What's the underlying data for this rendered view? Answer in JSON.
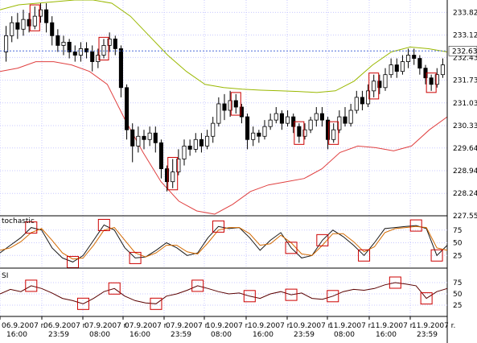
{
  "chart_data": [
    {
      "type": "candlestick",
      "panel": "price",
      "yticks": [
        233.82,
        233.12,
        232.43,
        231.73,
        231.03,
        230.33,
        229.64,
        228.94,
        228.24,
        227.55
      ],
      "ylim": [
        227.55,
        234.2
      ],
      "current_price": {
        "value": 232.63,
        "label": "232.63"
      },
      "bollinger_upper": [
        233.9,
        234.05,
        234.1,
        234.15,
        234.2,
        234.2,
        234.1,
        233.7,
        233.1,
        232.5,
        232.0,
        231.6,
        231.5,
        231.45,
        231.42,
        231.4,
        231.38,
        231.35,
        231.4,
        231.7,
        232.2,
        232.6,
        232.75,
        232.7,
        232.6
      ],
      "bollinger_lower": [
        232.0,
        232.1,
        232.3,
        232.3,
        232.2,
        232.0,
        231.6,
        230.5,
        229.5,
        228.6,
        228.0,
        227.7,
        227.6,
        227.9,
        228.3,
        228.5,
        228.6,
        228.7,
        229.0,
        229.5,
        229.7,
        229.65,
        229.55,
        229.7,
        230.2,
        230.6
      ],
      "candles": [
        [
          232.6,
          233.1,
          233.4,
          232.3
        ],
        [
          233.1,
          233.5,
          233.7,
          232.9
        ],
        [
          233.5,
          233.3,
          233.8,
          233.0
        ],
        [
          233.3,
          233.6,
          233.9,
          233.1
        ],
        [
          233.6,
          233.4,
          233.8,
          233.2
        ],
        [
          233.4,
          233.7,
          234.0,
          233.3
        ],
        [
          233.7,
          233.9,
          234.1,
          233.5
        ],
        [
          233.9,
          233.5,
          234.1,
          233.2
        ],
        [
          233.5,
          233.1,
          233.7,
          232.8
        ],
        [
          233.1,
          232.8,
          233.3,
          232.6
        ],
        [
          232.8,
          232.9,
          233.1,
          232.5
        ],
        [
          232.9,
          232.6,
          233.0,
          232.4
        ],
        [
          232.6,
          232.5,
          232.8,
          232.3
        ],
        [
          232.5,
          232.7,
          232.9,
          232.3
        ],
        [
          232.7,
          232.6,
          232.9,
          232.4
        ],
        [
          232.6,
          232.3,
          232.8,
          232.0
        ],
        [
          232.3,
          232.5,
          232.7,
          232.1
        ],
        [
          232.5,
          232.8,
          233.0,
          232.4
        ],
        [
          232.8,
          233.0,
          233.2,
          232.6
        ],
        [
          233.0,
          232.7,
          233.1,
          232.5
        ],
        [
          232.7,
          231.5,
          232.8,
          231.2
        ],
        [
          231.5,
          230.2,
          231.6,
          229.9
        ],
        [
          230.2,
          229.7,
          230.4,
          229.2
        ],
        [
          229.7,
          230.0,
          230.3,
          229.5
        ],
        [
          230.0,
          229.9,
          230.2,
          229.6
        ],
        [
          229.9,
          230.1,
          230.3,
          229.7
        ],
        [
          230.1,
          229.8,
          230.3,
          229.5
        ],
        [
          229.8,
          229.0,
          229.9,
          228.7
        ],
        [
          229.0,
          228.6,
          229.1,
          228.3
        ],
        [
          228.6,
          228.9,
          229.3,
          228.4
        ],
        [
          228.9,
          229.3,
          229.6,
          228.8
        ],
        [
          229.3,
          229.7,
          229.9,
          229.1
        ],
        [
          229.7,
          229.6,
          229.9,
          229.4
        ],
        [
          229.6,
          229.9,
          230.1,
          229.5
        ],
        [
          229.9,
          229.7,
          230.1,
          229.5
        ],
        [
          229.7,
          230.0,
          230.2,
          229.6
        ],
        [
          230.0,
          230.4,
          230.6,
          229.8
        ],
        [
          230.4,
          231.0,
          231.2,
          230.3
        ],
        [
          231.0,
          230.8,
          231.3,
          230.5
        ],
        [
          230.8,
          231.1,
          231.4,
          230.6
        ],
        [
          231.1,
          230.9,
          231.3,
          230.7
        ],
        [
          230.9,
          230.6,
          231.0,
          230.4
        ],
        [
          230.6,
          229.9,
          230.7,
          229.6
        ],
        [
          229.9,
          230.1,
          230.3,
          229.7
        ],
        [
          230.1,
          230.0,
          230.2,
          229.8
        ],
        [
          230.0,
          230.3,
          230.5,
          229.9
        ],
        [
          230.3,
          230.5,
          230.7,
          230.2
        ],
        [
          230.5,
          230.7,
          230.9,
          230.4
        ],
        [
          230.7,
          230.4,
          230.8,
          230.2
        ],
        [
          230.4,
          230.6,
          230.8,
          230.3
        ],
        [
          230.6,
          230.3,
          230.7,
          230.1
        ],
        [
          230.3,
          230.0,
          230.4,
          229.8
        ],
        [
          230.0,
          230.2,
          230.4,
          229.9
        ],
        [
          230.2,
          230.5,
          230.6,
          230.1
        ],
        [
          230.5,
          230.7,
          230.9,
          230.3
        ],
        [
          230.7,
          230.5,
          230.9,
          230.3
        ],
        [
          230.5,
          229.9,
          230.6,
          229.6
        ],
        [
          229.9,
          230.2,
          230.4,
          229.8
        ],
        [
          230.2,
          230.6,
          230.8,
          230.1
        ],
        [
          230.6,
          230.4,
          230.9,
          230.3
        ],
        [
          230.4,
          230.8,
          231.0,
          230.3
        ],
        [
          230.8,
          231.2,
          231.4,
          230.7
        ],
        [
          231.2,
          231.0,
          231.4,
          230.8
        ],
        [
          231.0,
          231.4,
          231.6,
          230.9
        ],
        [
          231.4,
          231.7,
          231.9,
          231.2
        ],
        [
          231.7,
          231.5,
          231.9,
          231.3
        ],
        [
          231.5,
          231.9,
          232.1,
          231.4
        ],
        [
          231.9,
          232.2,
          232.4,
          231.8
        ],
        [
          232.2,
          232.0,
          232.4,
          231.8
        ],
        [
          232.0,
          232.3,
          232.5,
          231.9
        ],
        [
          232.3,
          232.5,
          232.7,
          232.1
        ],
        [
          232.5,
          232.4,
          232.7,
          232.2
        ],
        [
          232.4,
          232.1,
          232.5,
          231.9
        ],
        [
          232.1,
          231.8,
          232.2,
          231.6
        ],
        [
          231.8,
          231.6,
          231.9,
          231.4
        ],
        [
          231.6,
          231.9,
          232.1,
          231.5
        ],
        [
          231.9,
          232.2,
          232.4,
          231.8
        ]
      ],
      "marker_candles": [
        5,
        17,
        29,
        40,
        51,
        57,
        64,
        74
      ]
    },
    {
      "type": "line",
      "panel": "stochastic",
      "title": "tochastic",
      "yticks": [
        75,
        50,
        25
      ],
      "ylim": [
        0,
        100
      ],
      "series": [
        {
          "color": "#1a1a1a",
          "values": [
            30,
            45,
            60,
            80,
            75,
            40,
            20,
            12,
            25,
            55,
            85,
            75,
            40,
            20,
            22,
            35,
            50,
            40,
            25,
            30,
            60,
            82,
            78,
            80,
            60,
            35,
            55,
            70,
            40,
            20,
            25,
            55,
            75,
            62,
            45,
            25,
            50,
            78,
            80,
            82,
            84,
            78,
            25,
            45
          ]
        },
        {
          "color": "#d46a00",
          "values": [
            35,
            40,
            52,
            70,
            78,
            55,
            30,
            18,
            20,
            45,
            75,
            80,
            55,
            30,
            22,
            30,
            45,
            45,
            32,
            28,
            50,
            75,
            80,
            80,
            68,
            45,
            48,
            65,
            50,
            28,
            25,
            45,
            68,
            68,
            52,
            32,
            42,
            70,
            78,
            80,
            82,
            80,
            40,
            35
          ]
        }
      ]
    },
    {
      "type": "line",
      "panel": "rsi",
      "title": "SI",
      "yticks": [
        75,
        50,
        25
      ],
      "ylim": [
        0,
        100
      ],
      "series": [
        {
          "color": "#5a0000",
          "values": [
            50,
            60,
            55,
            68,
            62,
            52,
            40,
            35,
            28,
            40,
            55,
            62,
            45,
            35,
            30,
            28,
            45,
            50,
            58,
            68,
            62,
            55,
            50,
            52,
            45,
            40,
            50,
            55,
            48,
            52,
            40,
            38,
            45,
            55,
            60,
            58,
            62,
            70,
            75,
            72,
            68,
            40,
            55,
            62
          ]
        }
      ]
    }
  ],
  "x_labels": [
    {
      "date": "06.9.2007 r.",
      "time": "16:00"
    },
    {
      "date": "06.9.2007 r.",
      "time": "23:59"
    },
    {
      "date": "07.9.2007 r.",
      "time": "08:00"
    },
    {
      "date": "07.9.2007 r.",
      "time": "16:00"
    },
    {
      "date": "07.9.2007 r.",
      "time": "23:59"
    },
    {
      "date": "10.9.2007 r.",
      "time": "08:00"
    },
    {
      "date": "10.9.2007 r.",
      "time": "16:00"
    },
    {
      "date": "10.9.2007 r.",
      "time": "23:59"
    },
    {
      "date": "11.9.2007 r.",
      "time": "08:00"
    },
    {
      "date": "11.9.2007 r.",
      "time": "16:00"
    },
    {
      "date": "11.9.2007 r.",
      "time": "23:59"
    }
  ],
  "colors": {
    "bollinger_upper": "#9ab800",
    "bollinger_lower": "#e04040",
    "marker": "#cc0000",
    "current_line": "#4a6ad8",
    "grid": "#c8c8ff"
  }
}
